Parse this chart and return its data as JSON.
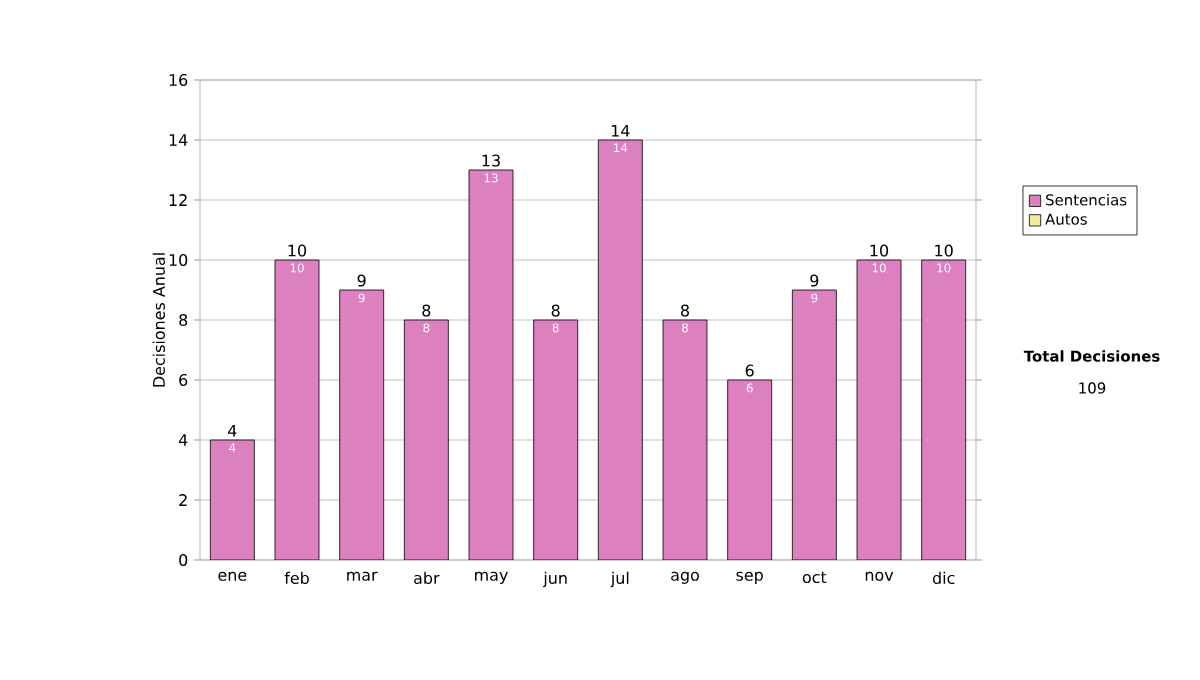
{
  "chart_data": {
    "type": "bar",
    "stacked": true,
    "ylabel": "Decisiones Anual",
    "categories": [
      "ene",
      "feb",
      "mar",
      "abr",
      "may",
      "jun",
      "jul",
      "ago",
      "sep",
      "oct",
      "nov",
      "dic"
    ],
    "series": [
      {
        "name": "Sentencias",
        "color": "#dd80c0",
        "values": [
          4,
          10,
          9,
          8,
          13,
          8,
          14,
          8,
          6,
          9,
          10,
          10
        ],
        "value_labels": [
          "4",
          "10",
          "9",
          "8",
          "13",
          "8",
          "14",
          "8",
          "6",
          "9",
          "10",
          "10"
        ]
      },
      {
        "name": "Autos",
        "color": "#eeee99",
        "values": [
          0,
          0,
          0,
          0,
          0,
          0,
          0,
          0,
          0,
          0,
          0,
          0
        ]
      }
    ],
    "totals": [
      "4",
      "10",
      "9",
      "8",
      "13",
      "8",
      "14",
      "8",
      "6",
      "9",
      "10",
      "10"
    ],
    "ylim": [
      0,
      16
    ],
    "yticks": [
      0,
      2,
      4,
      6,
      8,
      10,
      12,
      14,
      16
    ],
    "grid": "y",
    "legend": "right",
    "annotations": [
      "**Total Decisiones**",
      "109"
    ]
  }
}
